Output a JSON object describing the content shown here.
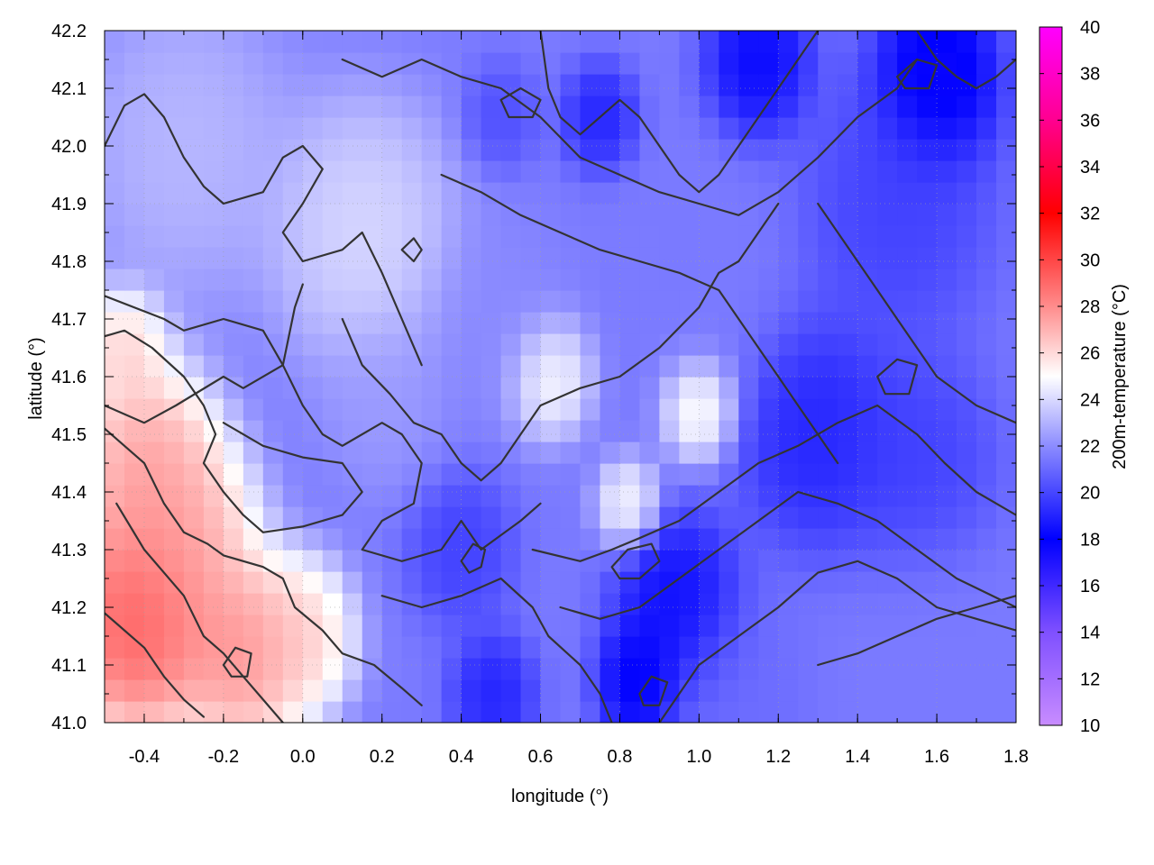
{
  "chart_data": {
    "type": "heatmap",
    "xlabel": "longitude (°)",
    "ylabel": "latitude (°)",
    "colorbar_label": "200m-temperature (°C)",
    "xlim": [
      -0.5,
      1.8
    ],
    "ylim": [
      41.0,
      42.2
    ],
    "clim": [
      10,
      40
    ],
    "x_ticks": [
      -0.4,
      -0.2,
      0.0,
      0.2,
      0.4,
      0.6,
      0.8,
      1.0,
      1.2,
      1.4,
      1.6,
      1.8
    ],
    "x_tick_labels": [
      "-0.4",
      "-0.2",
      "0.0",
      "0.2",
      "0.4",
      "0.6",
      "0.8",
      "1.0",
      "1.2",
      "1.4",
      "1.6",
      "1.8"
    ],
    "y_ticks": [
      41.0,
      41.1,
      41.2,
      41.3,
      41.4,
      41.5,
      41.6,
      41.7,
      41.8,
      41.9,
      42.0,
      42.1,
      42.2
    ],
    "y_tick_labels": [
      "41.0",
      "41.1",
      "41.2",
      "41.3",
      "41.4",
      "41.5",
      "41.6",
      "41.7",
      "41.8",
      "41.9",
      "42.0",
      "42.1",
      "42.2"
    ],
    "c_ticks": [
      10,
      12,
      14,
      16,
      18,
      20,
      22,
      24,
      26,
      28,
      30,
      32,
      34,
      36,
      38,
      40
    ],
    "c_tick_labels": [
      "10",
      "12",
      "14",
      "16",
      "18",
      "20",
      "22",
      "24",
      "26",
      "28",
      "30",
      "32",
      "34",
      "36",
      "38",
      "40"
    ],
    "palette": [
      [
        10,
        "#c88cff"
      ],
      [
        14,
        "#7f50ff"
      ],
      [
        18,
        "#0000ff"
      ],
      [
        22,
        "#8c8cff"
      ],
      [
        25,
        "#ffffff"
      ],
      [
        28,
        "#ff8c8c"
      ],
      [
        32,
        "#ff0000"
      ],
      [
        36,
        "#ff0090"
      ],
      [
        40,
        "#ff00ff"
      ]
    ],
    "grid": true,
    "field_blobs": [
      {
        "x": -0.42,
        "y": 41.18,
        "v": 31,
        "r": 0.16
      },
      {
        "x": -0.15,
        "y": 41.12,
        "v": 29,
        "r": 0.13
      },
      {
        "x": -0.4,
        "y": 41.45,
        "v": 28.5,
        "r": 0.14
      },
      {
        "x": -0.3,
        "y": 41.32,
        "v": 28,
        "r": 0.14
      },
      {
        "x": 0.0,
        "y": 41.15,
        "v": 27,
        "r": 0.1
      },
      {
        "x": -0.45,
        "y": 41.65,
        "v": 27,
        "r": 0.08
      },
      {
        "x": 0.62,
        "y": 41.6,
        "v": 26,
        "r": 0.08
      },
      {
        "x": 1.0,
        "y": 41.55,
        "v": 26.5,
        "r": 0.07
      },
      {
        "x": 0.82,
        "y": 41.38,
        "v": 25.5,
        "r": 0.06
      },
      {
        "x": 0.15,
        "y": 41.85,
        "v": 24.5,
        "r": 0.18
      },
      {
        "x": -0.3,
        "y": 42.0,
        "v": 23.5,
        "r": 0.2
      },
      {
        "x": 0.4,
        "y": 41.3,
        "v": 19.5,
        "r": 0.1
      },
      {
        "x": 0.48,
        "y": 41.05,
        "v": 18.5,
        "r": 0.08
      },
      {
        "x": 0.95,
        "y": 41.2,
        "v": 17.5,
        "r": 0.12
      },
      {
        "x": 0.85,
        "y": 41.07,
        "v": 17,
        "r": 0.08
      },
      {
        "x": 1.3,
        "y": 41.5,
        "v": 18.5,
        "r": 0.15
      },
      {
        "x": 1.55,
        "y": 41.45,
        "v": 19.5,
        "r": 0.15
      },
      {
        "x": 1.5,
        "y": 41.9,
        "v": 19.5,
        "r": 0.18
      },
      {
        "x": 1.6,
        "y": 42.12,
        "v": 16.5,
        "r": 0.12
      },
      {
        "x": 1.15,
        "y": 42.15,
        "v": 17.5,
        "r": 0.1
      },
      {
        "x": 0.75,
        "y": 42.05,
        "v": 18.5,
        "r": 0.07
      },
      {
        "x": 0.5,
        "y": 42.05,
        "v": 20,
        "r": 0.07
      },
      {
        "x": 1.6,
        "y": 41.1,
        "v": 21.5,
        "r": 0.18
      },
      {
        "x": 1.1,
        "y": 41.05,
        "v": 21,
        "r": 0.15
      },
      {
        "x": 0.5,
        "y": 41.7,
        "v": 22,
        "r": 0.14
      },
      {
        "x": 1.0,
        "y": 41.75,
        "v": 21.5,
        "r": 0.16
      },
      {
        "x": 0.2,
        "y": 41.55,
        "v": 22.5,
        "r": 0.12
      }
    ],
    "contours": [
      [
        [
          -0.5,
          41.51
        ],
        [
          -0.4,
          41.45
        ],
        [
          -0.35,
          41.38
        ],
        [
          -0.3,
          41.33
        ],
        [
          -0.24,
          41.31
        ],
        [
          -0.2,
          41.29
        ],
        [
          -0.1,
          41.27
        ],
        [
          -0.05,
          41.25
        ],
        [
          -0.02,
          41.2
        ],
        [
          0.05,
          41.16
        ],
        [
          0.1,
          41.12
        ],
        [
          0.18,
          41.1
        ],
        [
          0.25,
          41.06
        ],
        [
          0.3,
          41.03
        ]
      ],
      [
        [
          -0.47,
          41.38
        ],
        [
          -0.4,
          41.3
        ],
        [
          -0.3,
          41.22
        ],
        [
          -0.25,
          41.15
        ],
        [
          -0.2,
          41.12
        ],
        [
          -0.15,
          41.08
        ],
        [
          -0.1,
          41.04
        ],
        [
          -0.05,
          41.0
        ]
      ],
      [
        [
          -0.5,
          41.19
        ],
        [
          -0.4,
          41.13
        ],
        [
          -0.35,
          41.08
        ],
        [
          -0.3,
          41.04
        ],
        [
          -0.25,
          41.01
        ]
      ],
      [
        [
          -0.5,
          41.67
        ],
        [
          -0.45,
          41.68
        ],
        [
          -0.38,
          41.65
        ],
        [
          -0.3,
          41.6
        ],
        [
          -0.25,
          41.55
        ],
        [
          -0.22,
          41.5
        ],
        [
          -0.25,
          41.45
        ],
        [
          -0.2,
          41.4
        ],
        [
          -0.15,
          41.36
        ],
        [
          -0.1,
          41.33
        ],
        [
          0.0,
          41.34
        ],
        [
          0.1,
          41.36
        ],
        [
          0.15,
          41.4
        ],
        [
          0.1,
          41.45
        ],
        [
          0.0,
          41.46
        ],
        [
          -0.1,
          41.48
        ],
        [
          -0.2,
          41.52
        ]
      ],
      [
        [
          -0.5,
          41.74
        ],
        [
          -0.35,
          41.7
        ],
        [
          -0.3,
          41.68
        ],
        [
          -0.2,
          41.7
        ],
        [
          -0.1,
          41.68
        ],
        [
          -0.05,
          41.62
        ],
        [
          0.0,
          41.55
        ],
        [
          0.05,
          41.5
        ],
        [
          0.1,
          41.48
        ],
        [
          0.2,
          41.52
        ],
        [
          0.25,
          41.5
        ],
        [
          0.3,
          41.45
        ],
        [
          0.28,
          41.38
        ],
        [
          0.2,
          41.35
        ],
        [
          0.15,
          41.3
        ],
        [
          0.25,
          41.28
        ],
        [
          0.35,
          41.3
        ],
        [
          0.4,
          41.35
        ],
        [
          0.45,
          41.3
        ],
        [
          0.55,
          41.35
        ],
        [
          0.6,
          41.38
        ]
      ],
      [
        [
          -0.5,
          42.0
        ],
        [
          -0.45,
          42.07
        ],
        [
          -0.4,
          42.09
        ],
        [
          -0.35,
          42.05
        ],
        [
          -0.3,
          41.98
        ],
        [
          -0.25,
          41.93
        ],
        [
          -0.2,
          41.9
        ],
        [
          -0.1,
          41.92
        ],
        [
          -0.05,
          41.98
        ],
        [
          0.0,
          42.0
        ],
        [
          0.05,
          41.96
        ],
        [
          0.0,
          41.9
        ],
        [
          -0.05,
          41.85
        ],
        [
          0.0,
          41.8
        ],
        [
          0.1,
          41.82
        ],
        [
          0.15,
          41.85
        ],
        [
          0.2,
          41.78
        ],
        [
          0.25,
          41.7
        ],
        [
          0.3,
          41.62
        ]
      ],
      [
        [
          -0.5,
          41.55
        ],
        [
          -0.4,
          41.52
        ],
        [
          -0.32,
          41.55
        ],
        [
          -0.2,
          41.6
        ],
        [
          -0.15,
          41.58
        ],
        [
          -0.05,
          41.62
        ],
        [
          -0.02,
          41.72
        ],
        [
          0.0,
          41.76
        ]
      ],
      [
        [
          0.1,
          41.7
        ],
        [
          0.15,
          41.62
        ],
        [
          0.22,
          41.57
        ],
        [
          0.28,
          41.52
        ],
        [
          0.35,
          41.5
        ],
        [
          0.4,
          41.45
        ],
        [
          0.45,
          41.42
        ],
        [
          0.5,
          41.45
        ],
        [
          0.55,
          41.5
        ],
        [
          0.6,
          41.55
        ],
        [
          0.7,
          41.58
        ],
        [
          0.8,
          41.6
        ],
        [
          0.9,
          41.65
        ],
        [
          1.0,
          41.72
        ],
        [
          1.05,
          41.78
        ],
        [
          1.1,
          41.8
        ],
        [
          1.15,
          41.85
        ],
        [
          1.2,
          41.9
        ]
      ],
      [
        [
          0.2,
          41.22
        ],
        [
          0.3,
          41.2
        ],
        [
          0.4,
          41.22
        ],
        [
          0.5,
          41.25
        ],
        [
          0.58,
          41.2
        ],
        [
          0.62,
          41.15
        ],
        [
          0.7,
          41.1
        ],
        [
          0.75,
          41.05
        ],
        [
          0.78,
          41.0
        ]
      ],
      [
        [
          0.58,
          41.3
        ],
        [
          0.7,
          41.28
        ],
        [
          0.78,
          41.3
        ],
        [
          0.85,
          41.32
        ],
        [
          0.95,
          41.35
        ],
        [
          1.05,
          41.4
        ],
        [
          1.15,
          41.45
        ],
        [
          1.25,
          41.48
        ],
        [
          1.35,
          41.52
        ],
        [
          1.45,
          41.55
        ],
        [
          1.55,
          41.5
        ],
        [
          1.62,
          41.45
        ],
        [
          1.7,
          41.4
        ],
        [
          1.8,
          41.36
        ]
      ],
      [
        [
          0.65,
          41.2
        ],
        [
          0.75,
          41.18
        ],
        [
          0.85,
          41.2
        ],
        [
          0.95,
          41.25
        ],
        [
          1.05,
          41.3
        ],
        [
          1.15,
          41.35
        ],
        [
          1.25,
          41.4
        ],
        [
          1.35,
          41.38
        ],
        [
          1.45,
          41.35
        ],
        [
          1.55,
          41.3
        ],
        [
          1.65,
          41.25
        ],
        [
          1.8,
          41.2
        ]
      ],
      [
        [
          0.9,
          41.0
        ],
        [
          0.95,
          41.05
        ],
        [
          1.0,
          41.1
        ],
        [
          1.1,
          41.15
        ],
        [
          1.2,
          41.2
        ],
        [
          1.3,
          41.26
        ],
        [
          1.4,
          41.28
        ],
        [
          1.5,
          41.25
        ],
        [
          1.6,
          41.2
        ],
        [
          1.7,
          41.18
        ],
        [
          1.8,
          41.16
        ]
      ],
      [
        [
          0.6,
          42.2
        ],
        [
          0.62,
          42.1
        ],
        [
          0.65,
          42.05
        ],
        [
          0.7,
          42.02
        ],
        [
          0.75,
          42.05
        ],
        [
          0.8,
          42.08
        ],
        [
          0.85,
          42.05
        ],
        [
          0.9,
          42.0
        ],
        [
          0.95,
          41.95
        ],
        [
          1.0,
          41.92
        ],
        [
          1.05,
          41.95
        ],
        [
          1.1,
          42.0
        ],
        [
          1.15,
          42.05
        ],
        [
          1.2,
          42.1
        ],
        [
          1.25,
          42.15
        ],
        [
          1.3,
          42.2
        ]
      ],
      [
        [
          1.3,
          41.1
        ],
        [
          1.4,
          41.12
        ],
        [
          1.5,
          41.15
        ],
        [
          1.6,
          41.18
        ],
        [
          1.7,
          41.2
        ],
        [
          1.8,
          41.22
        ]
      ],
      [
        [
          1.55,
          42.2
        ],
        [
          1.6,
          42.15
        ],
        [
          1.65,
          42.12
        ],
        [
          1.7,
          42.1
        ],
        [
          1.75,
          42.12
        ],
        [
          1.8,
          42.15
        ]
      ],
      [
        [
          0.1,
          42.15
        ],
        [
          0.2,
          42.12
        ],
        [
          0.3,
          42.15
        ],
        [
          0.4,
          42.12
        ],
        [
          0.5,
          42.1
        ],
        [
          0.6,
          42.05
        ],
        [
          0.7,
          41.98
        ],
        [
          0.8,
          41.95
        ],
        [
          0.9,
          41.92
        ],
        [
          1.0,
          41.9
        ],
        [
          1.1,
          41.88
        ],
        [
          1.2,
          41.92
        ],
        [
          1.3,
          41.98
        ],
        [
          1.4,
          42.05
        ],
        [
          1.5,
          42.1
        ],
        [
          1.55,
          42.15
        ]
      ],
      [
        [
          1.3,
          41.9
        ],
        [
          1.35,
          41.85
        ],
        [
          1.4,
          41.8
        ],
        [
          1.45,
          41.75
        ],
        [
          1.5,
          41.7
        ],
        [
          1.55,
          41.65
        ],
        [
          1.6,
          41.6
        ],
        [
          1.7,
          41.55
        ],
        [
          1.8,
          41.52
        ]
      ],
      [
        [
          0.35,
          41.95
        ],
        [
          0.45,
          41.92
        ],
        [
          0.55,
          41.88
        ],
        [
          0.65,
          41.85
        ],
        [
          0.75,
          41.82
        ],
        [
          0.85,
          41.8
        ],
        [
          0.95,
          41.78
        ],
        [
          1.05,
          41.75
        ],
        [
          1.1,
          41.7
        ],
        [
          1.15,
          41.65
        ],
        [
          1.2,
          41.6
        ],
        [
          1.25,
          41.55
        ],
        [
          1.3,
          41.5
        ],
        [
          1.35,
          41.45
        ]
      ]
    ],
    "closed_contours": [
      [
        [
          0.78,
          41.27
        ],
        [
          0.82,
          41.3
        ],
        [
          0.88,
          41.31
        ],
        [
          0.9,
          41.28
        ],
        [
          0.85,
          41.25
        ],
        [
          0.8,
          41.25
        ]
      ],
      [
        [
          0.4,
          41.28
        ],
        [
          0.43,
          41.31
        ],
        [
          0.46,
          41.3
        ],
        [
          0.45,
          41.27
        ],
        [
          0.42,
          41.26
        ]
      ],
      [
        [
          -0.2,
          41.1
        ],
        [
          -0.17,
          41.13
        ],
        [
          -0.13,
          41.12
        ],
        [
          -0.14,
          41.08
        ],
        [
          -0.18,
          41.08
        ]
      ],
      [
        [
          0.5,
          42.08
        ],
        [
          0.55,
          42.1
        ],
        [
          0.6,
          42.08
        ],
        [
          0.58,
          42.05
        ],
        [
          0.52,
          42.05
        ]
      ],
      [
        [
          1.45,
          41.6
        ],
        [
          1.5,
          41.63
        ],
        [
          1.55,
          41.62
        ],
        [
          1.53,
          41.57
        ],
        [
          1.47,
          41.57
        ]
      ],
      [
        [
          0.85,
          41.05
        ],
        [
          0.88,
          41.08
        ],
        [
          0.92,
          41.07
        ],
        [
          0.9,
          41.03
        ],
        [
          0.86,
          41.03
        ]
      ],
      [
        [
          1.5,
          42.12
        ],
        [
          1.55,
          42.15
        ],
        [
          1.6,
          42.14
        ],
        [
          1.58,
          42.1
        ],
        [
          1.52,
          42.1
        ]
      ],
      [
        [
          0.25,
          41.82
        ],
        [
          0.28,
          41.84
        ],
        [
          0.3,
          41.82
        ],
        [
          0.28,
          41.8
        ]
      ]
    ]
  }
}
